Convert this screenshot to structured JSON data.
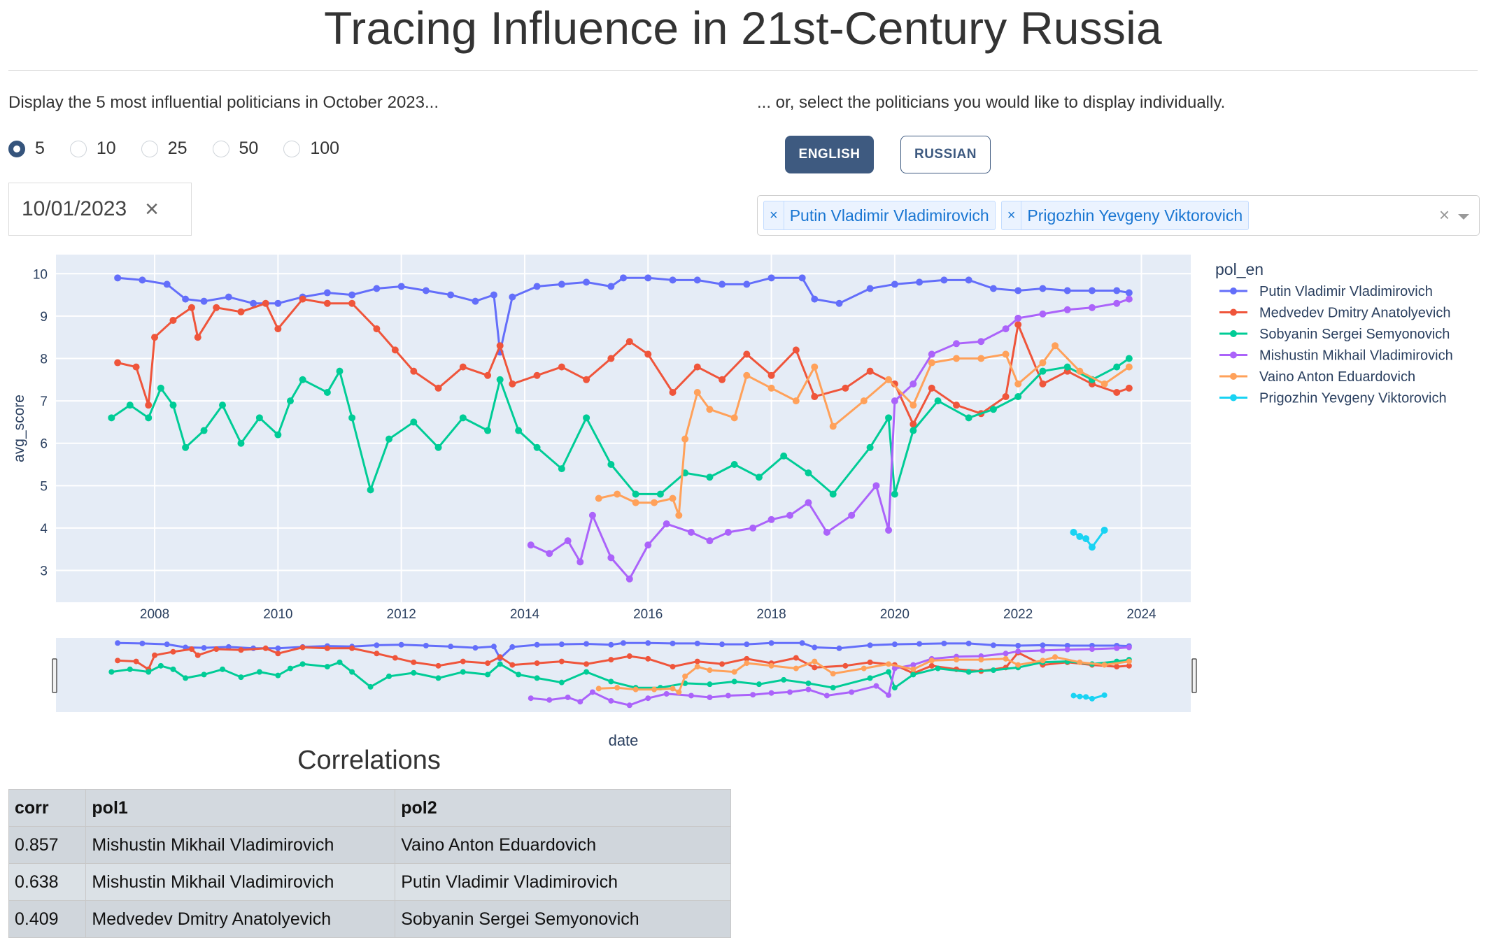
{
  "page": {
    "title": "Tracing Influence in 21st-Century Russia",
    "top_label": "Display the 5 most influential politicians in October 2023...",
    "select_label": "... or, select the politicians you would like to display individually.",
    "radio_options": [
      "5",
      "10",
      "25",
      "50",
      "100"
    ],
    "radio_selected": "5",
    "lang_buttons": {
      "english": "ENGLISH",
      "russian": "RUSSIAN",
      "active": "english"
    },
    "date_value": "10/01/2023",
    "date_clear": "×",
    "selected_tags": [
      "Putin Vladimir Vladimirovich",
      "Prigozhin Yevgeny Viktorovich"
    ],
    "tag_remove": "×",
    "multi_clear": "×"
  },
  "chart_data": {
    "type": "line",
    "xlabel": "date",
    "ylabel": "avg_score",
    "xlim": [
      2006.4,
      2024.8
    ],
    "ylim": [
      2.25,
      10.45
    ],
    "x_ticks": [
      2008,
      2010,
      2012,
      2014,
      2016,
      2018,
      2020,
      2022,
      2024
    ],
    "y_ticks": [
      3,
      4,
      5,
      6,
      7,
      8,
      9,
      10
    ],
    "grid": true,
    "range_slider": true,
    "legend": {
      "title": "pol_en",
      "placement": "right"
    },
    "series": [
      {
        "name": "Putin Vladimir Vladimirovich",
        "color": "#636efa",
        "points": [
          [
            2007.4,
            9.9
          ],
          [
            2007.8,
            9.85
          ],
          [
            2008.2,
            9.75
          ],
          [
            2008.5,
            9.4
          ],
          [
            2008.8,
            9.35
          ],
          [
            2009.2,
            9.45
          ],
          [
            2009.6,
            9.3
          ],
          [
            2010.0,
            9.3
          ],
          [
            2010.4,
            9.45
          ],
          [
            2010.8,
            9.55
          ],
          [
            2011.2,
            9.5
          ],
          [
            2011.6,
            9.65
          ],
          [
            2012.0,
            9.7
          ],
          [
            2012.4,
            9.6
          ],
          [
            2012.8,
            9.5
          ],
          [
            2013.2,
            9.35
          ],
          [
            2013.5,
            9.5
          ],
          [
            2013.6,
            8.15
          ],
          [
            2013.8,
            9.45
          ],
          [
            2014.2,
            9.7
          ],
          [
            2014.6,
            9.75
          ],
          [
            2015.0,
            9.8
          ],
          [
            2015.4,
            9.7
          ],
          [
            2015.6,
            9.9
          ],
          [
            2016.0,
            9.9
          ],
          [
            2016.4,
            9.85
          ],
          [
            2016.8,
            9.85
          ],
          [
            2017.2,
            9.75
          ],
          [
            2017.6,
            9.75
          ],
          [
            2018.0,
            9.9
          ],
          [
            2018.5,
            9.9
          ],
          [
            2018.7,
            9.4
          ],
          [
            2019.1,
            9.3
          ],
          [
            2019.6,
            9.65
          ],
          [
            2020.0,
            9.75
          ],
          [
            2020.4,
            9.8
          ],
          [
            2020.8,
            9.85
          ],
          [
            2021.2,
            9.85
          ],
          [
            2021.6,
            9.65
          ],
          [
            2022.0,
            9.6
          ],
          [
            2022.4,
            9.65
          ],
          [
            2022.8,
            9.6
          ],
          [
            2023.2,
            9.6
          ],
          [
            2023.6,
            9.6
          ],
          [
            2023.8,
            9.55
          ]
        ]
      },
      {
        "name": "Medvedev Dmitry Anatolyevich",
        "color": "#ef553b",
        "points": [
          [
            2007.4,
            7.9
          ],
          [
            2007.7,
            7.8
          ],
          [
            2007.9,
            6.9
          ],
          [
            2008.0,
            8.5
          ],
          [
            2008.3,
            8.9
          ],
          [
            2008.6,
            9.2
          ],
          [
            2008.7,
            8.5
          ],
          [
            2009.0,
            9.2
          ],
          [
            2009.4,
            9.1
          ],
          [
            2009.8,
            9.3
          ],
          [
            2010.0,
            8.7
          ],
          [
            2010.4,
            9.4
          ],
          [
            2010.8,
            9.3
          ],
          [
            2011.2,
            9.3
          ],
          [
            2011.6,
            8.7
          ],
          [
            2011.9,
            8.2
          ],
          [
            2012.2,
            7.7
          ],
          [
            2012.6,
            7.3
          ],
          [
            2013.0,
            7.8
          ],
          [
            2013.4,
            7.6
          ],
          [
            2013.6,
            8.3
          ],
          [
            2013.8,
            7.4
          ],
          [
            2014.2,
            7.6
          ],
          [
            2014.6,
            7.8
          ],
          [
            2015.0,
            7.5
          ],
          [
            2015.4,
            8.0
          ],
          [
            2015.7,
            8.4
          ],
          [
            2016.0,
            8.1
          ],
          [
            2016.4,
            7.2
          ],
          [
            2016.8,
            7.8
          ],
          [
            2017.2,
            7.5
          ],
          [
            2017.6,
            8.1
          ],
          [
            2018.0,
            7.6
          ],
          [
            2018.4,
            8.2
          ],
          [
            2018.7,
            7.1
          ],
          [
            2019.2,
            7.3
          ],
          [
            2019.6,
            7.7
          ],
          [
            2020.0,
            7.4
          ],
          [
            2020.3,
            6.45
          ],
          [
            2020.6,
            7.3
          ],
          [
            2021.0,
            6.9
          ],
          [
            2021.4,
            6.7
          ],
          [
            2021.8,
            7.1
          ],
          [
            2022.0,
            8.8
          ],
          [
            2022.4,
            7.4
          ],
          [
            2022.8,
            7.7
          ],
          [
            2023.2,
            7.4
          ],
          [
            2023.6,
            7.2
          ],
          [
            2023.8,
            7.3
          ]
        ]
      },
      {
        "name": "Sobyanin Sergei Semyonovich",
        "color": "#00cc96",
        "points": [
          [
            2007.3,
            6.6
          ],
          [
            2007.6,
            6.9
          ],
          [
            2007.9,
            6.6
          ],
          [
            2008.1,
            7.3
          ],
          [
            2008.3,
            6.9
          ],
          [
            2008.5,
            5.9
          ],
          [
            2008.8,
            6.3
          ],
          [
            2009.1,
            6.9
          ],
          [
            2009.4,
            6.0
          ],
          [
            2009.7,
            6.6
          ],
          [
            2010.0,
            6.2
          ],
          [
            2010.2,
            7.0
          ],
          [
            2010.4,
            7.5
          ],
          [
            2010.8,
            7.2
          ],
          [
            2011.0,
            7.7
          ],
          [
            2011.2,
            6.6
          ],
          [
            2011.5,
            4.9
          ],
          [
            2011.8,
            6.1
          ],
          [
            2012.2,
            6.5
          ],
          [
            2012.6,
            5.9
          ],
          [
            2013.0,
            6.6
          ],
          [
            2013.4,
            6.3
          ],
          [
            2013.6,
            7.5
          ],
          [
            2013.9,
            6.3
          ],
          [
            2014.2,
            5.9
          ],
          [
            2014.6,
            5.4
          ],
          [
            2015.0,
            6.6
          ],
          [
            2015.4,
            5.5
          ],
          [
            2015.8,
            4.8
          ],
          [
            2016.2,
            4.8
          ],
          [
            2016.6,
            5.3
          ],
          [
            2017.0,
            5.2
          ],
          [
            2017.4,
            5.5
          ],
          [
            2017.8,
            5.2
          ],
          [
            2018.2,
            5.7
          ],
          [
            2018.6,
            5.3
          ],
          [
            2019.0,
            4.8
          ],
          [
            2019.6,
            5.9
          ],
          [
            2019.9,
            6.6
          ],
          [
            2020.0,
            4.8
          ],
          [
            2020.3,
            6.3
          ],
          [
            2020.7,
            7.0
          ],
          [
            2021.2,
            6.6
          ],
          [
            2021.6,
            6.8
          ],
          [
            2022.0,
            7.1
          ],
          [
            2022.4,
            7.7
          ],
          [
            2022.8,
            7.8
          ],
          [
            2023.2,
            7.5
          ],
          [
            2023.6,
            7.8
          ],
          [
            2023.8,
            8.0
          ]
        ]
      },
      {
        "name": "Mishustin Mikhail Vladimirovich",
        "color": "#ab63fa",
        "points": [
          [
            2014.1,
            3.6
          ],
          [
            2014.4,
            3.4
          ],
          [
            2014.7,
            3.7
          ],
          [
            2014.9,
            3.2
          ],
          [
            2015.1,
            4.3
          ],
          [
            2015.4,
            3.3
          ],
          [
            2015.7,
            2.8
          ],
          [
            2016.0,
            3.6
          ],
          [
            2016.3,
            4.1
          ],
          [
            2016.7,
            3.9
          ],
          [
            2017.0,
            3.7
          ],
          [
            2017.3,
            3.9
          ],
          [
            2017.7,
            4.0
          ],
          [
            2018.0,
            4.2
          ],
          [
            2018.3,
            4.3
          ],
          [
            2018.6,
            4.6
          ],
          [
            2018.9,
            3.9
          ],
          [
            2019.3,
            4.3
          ],
          [
            2019.7,
            5.0
          ],
          [
            2019.9,
            3.95
          ],
          [
            2020.0,
            7.0
          ],
          [
            2020.3,
            7.4
          ],
          [
            2020.6,
            8.1
          ],
          [
            2021.0,
            8.35
          ],
          [
            2021.4,
            8.4
          ],
          [
            2021.8,
            8.7
          ],
          [
            2022.0,
            8.95
          ],
          [
            2022.4,
            9.05
          ],
          [
            2022.8,
            9.15
          ],
          [
            2023.2,
            9.2
          ],
          [
            2023.6,
            9.3
          ],
          [
            2023.8,
            9.4
          ]
        ]
      },
      {
        "name": "Vaino Anton Eduardovich",
        "color": "#ffa15a",
        "points": [
          [
            2015.2,
            4.7
          ],
          [
            2015.5,
            4.8
          ],
          [
            2015.8,
            4.6
          ],
          [
            2016.1,
            4.6
          ],
          [
            2016.4,
            4.7
          ],
          [
            2016.5,
            4.3
          ],
          [
            2016.6,
            6.1
          ],
          [
            2016.8,
            7.2
          ],
          [
            2017.0,
            6.8
          ],
          [
            2017.4,
            6.6
          ],
          [
            2017.6,
            7.6
          ],
          [
            2018.0,
            7.3
          ],
          [
            2018.4,
            7.0
          ],
          [
            2018.7,
            7.8
          ],
          [
            2019.0,
            6.4
          ],
          [
            2019.5,
            7.0
          ],
          [
            2019.9,
            7.5
          ],
          [
            2020.3,
            6.9
          ],
          [
            2020.6,
            7.9
          ],
          [
            2021.0,
            8.0
          ],
          [
            2021.4,
            8.0
          ],
          [
            2021.8,
            8.1
          ],
          [
            2022.0,
            7.4
          ],
          [
            2022.4,
            7.9
          ],
          [
            2022.6,
            8.3
          ],
          [
            2023.0,
            7.7
          ],
          [
            2023.4,
            7.4
          ],
          [
            2023.8,
            7.8
          ]
        ]
      },
      {
        "name": "Prigozhin Yevgeny Viktorovich",
        "color": "#19d3f3",
        "points": [
          [
            2022.9,
            3.9
          ],
          [
            2023.0,
            3.8
          ],
          [
            2023.1,
            3.75
          ],
          [
            2023.2,
            3.55
          ],
          [
            2023.4,
            3.95
          ]
        ]
      }
    ]
  },
  "correlations": {
    "title": "Correlations",
    "headers": [
      "corr",
      "pol1",
      "pol2"
    ],
    "rows": [
      [
        "0.857",
        "Mishustin Mikhail Vladimirovich",
        "Vaino Anton Eduardovich"
      ],
      [
        "0.638",
        "Mishustin Mikhail Vladimirovich",
        "Putin Vladimir Vladimirovich"
      ],
      [
        "0.409",
        "Medvedev Dmitry Anatolyevich",
        "Sobyanin Sergei Semyonovich"
      ]
    ]
  }
}
